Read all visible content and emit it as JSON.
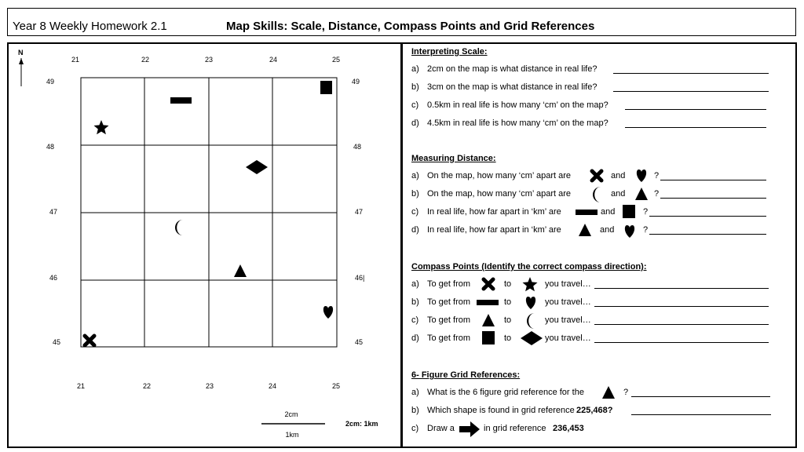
{
  "header": {
    "left": "Year 8 Weekly Homework 2.1",
    "title": "Map Skills: Scale, Distance, Compass Points and Grid References"
  },
  "map": {
    "north": "N",
    "x_labels": [
      "21",
      "22",
      "23",
      "24",
      "25"
    ],
    "y_labels": [
      "49",
      "48",
      "47",
      "46",
      "45"
    ],
    "y_label_46_right": "46|",
    "scale_top": "2cm",
    "scale_bottom": "1km",
    "scale_ratio": "2cm: 1km"
  },
  "scale_section": {
    "heading": "Interpreting Scale:",
    "items": [
      {
        "label": "a)",
        "text": "2cm on the map is what distance in real life?"
      },
      {
        "label": "b)",
        "text": "3cm on the map is what distance in real life?"
      },
      {
        "label": "c)",
        "text": "0.5km in real life is how many ‘cm’ on the map?"
      },
      {
        "label": "d)",
        "text": "4.5km in real life is how many ‘cm’ on the map?"
      }
    ]
  },
  "distance_section": {
    "heading": "Measuring Distance:",
    "items": [
      {
        "label": "a)",
        "text": "On the map, how many ‘cm’ apart are",
        "and": "and",
        "q": "?",
        "shape1": "cross",
        "shape2": "heart"
      },
      {
        "label": "b)",
        "text": "On the map, how many ‘cm’ apart are",
        "and": "and",
        "q": "?",
        "shape1": "moon",
        "shape2": "triangle"
      },
      {
        "label": "c)",
        "text": "In real life, how far apart in ‘km’ are",
        "and": "and",
        "q": "?",
        "shape1": "rectangle",
        "shape2": "square"
      },
      {
        "label": "d)",
        "text": "In real life, how far apart in ‘km’ are",
        "and": "and",
        "q": "?",
        "shape1": "triangle",
        "shape2": "heart"
      }
    ]
  },
  "compass_section": {
    "heading": "Compass Points (Identify the correct compass direction):",
    "items": [
      {
        "label": "a)",
        "text": "To get from",
        "to": "to",
        "travel": "you travel…",
        "shape1": "cross",
        "shape2": "star"
      },
      {
        "label": "b)",
        "text": "To get from",
        "to": "to",
        "travel": "you travel…",
        "shape1": "rectangle",
        "shape2": "heart"
      },
      {
        "label": "c)",
        "text": "To get from",
        "to": "to",
        "travel": "you travel…",
        "shape1": "triangle",
        "shape2": "moon"
      },
      {
        "label": "d)",
        "text": "To get from",
        "to": "to",
        "travel": "you travel…",
        "shape1": "square",
        "shape2": "diamond"
      }
    ]
  },
  "grid_section": {
    "heading": "6- Figure Grid References:",
    "a": {
      "label": "a)",
      "text": "What is the 6 figure grid reference for the",
      "q": "?"
    },
    "b": {
      "label": "b)",
      "text": "Which shape is found in grid reference",
      "ref": "225,468?"
    },
    "c": {
      "label": "c)",
      "text": "Draw a",
      "text2": "in grid reference",
      "ref": "236,453"
    }
  }
}
